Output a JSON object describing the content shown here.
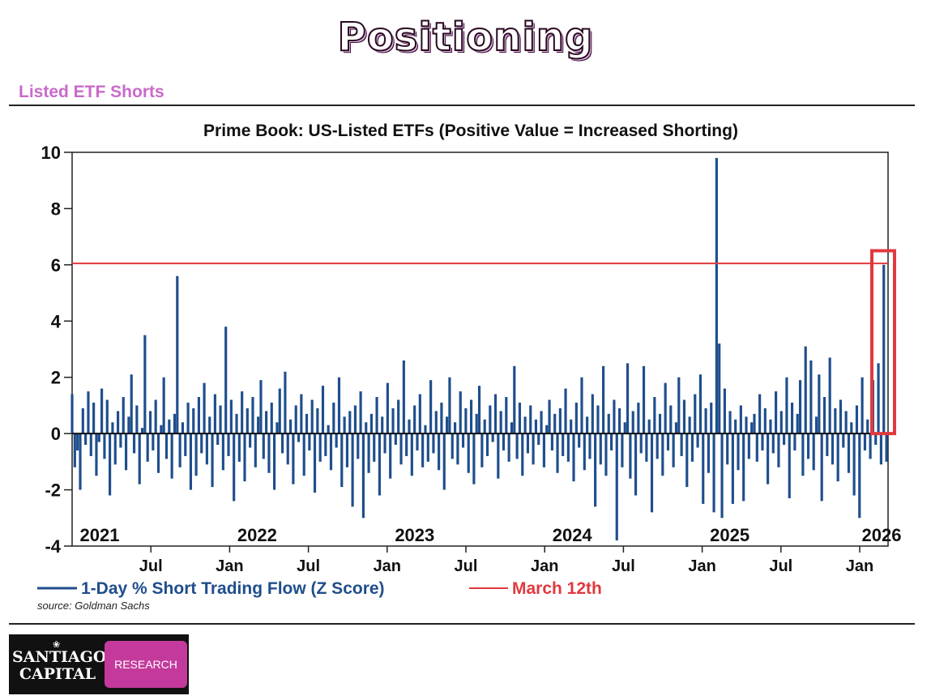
{
  "page": {
    "title": "Positioning",
    "section_title": "Listed ETF Shorts"
  },
  "logo": {
    "name_line1": "SANTIAGO",
    "name_line2": "CAPITAL",
    "badge": "RESEARCH",
    "emblem": "shell-icon"
  },
  "colors": {
    "series": "#1f4e8c",
    "reference": "#e0393e",
    "highlight_box": "#e0393e",
    "section_title": "#c96ac9",
    "logo_badge": "#c43a9c"
  },
  "chart_data": {
    "type": "bar",
    "title": "Prime Book: US-Listed ETFs (Positive Value = Increased Shorting)",
    "xlabel": "",
    "ylabel": "",
    "ylim": [
      -4,
      10
    ],
    "yticks": [
      -4,
      -2,
      0,
      2,
      4,
      6,
      8,
      10
    ],
    "xlim": [
      2021.0,
      2026.18
    ],
    "year_labels": [
      {
        "x": 2021.0,
        "label": "2021"
      },
      {
        "x": 2022.0,
        "label": "2022"
      },
      {
        "x": 2023.0,
        "label": "2023"
      },
      {
        "x": 2024.0,
        "label": "2024"
      },
      {
        "x": 2025.0,
        "label": "2025"
      },
      {
        "x": 2026.0,
        "label": "2026"
      }
    ],
    "month_labels": [
      {
        "x": 2021.5,
        "label": "Jul"
      },
      {
        "x": 2022.0,
        "label": "Jan"
      },
      {
        "x": 2022.5,
        "label": "Jul"
      },
      {
        "x": 2023.0,
        "label": "Jan"
      },
      {
        "x": 2023.5,
        "label": "Jul"
      },
      {
        "x": 2024.0,
        "label": "Jan"
      },
      {
        "x": 2024.5,
        "label": "Jul"
      },
      {
        "x": 2025.0,
        "label": "Jan"
      },
      {
        "x": 2025.5,
        "label": "Jul"
      },
      {
        "x": 2026.0,
        "label": "Jan"
      }
    ],
    "reference_line": {
      "y": 6.05,
      "label": "March 12th"
    },
    "highlight_range": {
      "x": [
        2026.115,
        2026.175
      ],
      "y": [
        0,
        6.5
      ]
    },
    "series": [
      {
        "name": "1-Day % Short Trading Flow (Z Score)",
        "x_start": 2021.0,
        "x_end": 2026.17,
        "values": [
          1.4,
          -1.2,
          -0.6,
          -2.0,
          0.9,
          -0.4,
          1.5,
          -0.8,
          1.1,
          -1.5,
          -0.3,
          1.6,
          -0.9,
          1.2,
          -2.2,
          0.4,
          -1.1,
          0.8,
          -0.5,
          1.3,
          -1.3,
          0.6,
          2.1,
          -0.7,
          1.0,
          -1.8,
          0.2,
          3.5,
          -1.0,
          0.8,
          -0.6,
          1.2,
          -1.4,
          0.3,
          2.0,
          -0.9,
          0.5,
          -1.6,
          0.7,
          5.6,
          -1.2,
          0.4,
          -0.8,
          1.1,
          -2.0,
          0.9,
          -1.5,
          1.3,
          -0.7,
          1.8,
          -1.1,
          0.6,
          -1.9,
          1.4,
          -0.4,
          1.0,
          -1.3,
          3.8,
          -0.8,
          1.2,
          -2.4,
          0.7,
          -1.0,
          1.5,
          -1.7,
          0.9,
          -0.5,
          1.3,
          -1.2,
          0.6,
          1.9,
          -0.9,
          0.8,
          -1.4,
          1.1,
          -2.0,
          0.4,
          1.6,
          -0.7,
          2.2,
          -1.1,
          0.5,
          -1.8,
          1.0,
          -0.3,
          1.4,
          -1.5,
          0.7,
          -0.6,
          1.2,
          -2.1,
          0.9,
          -1.0,
          1.7,
          -0.8,
          0.3,
          -1.3,
          1.1,
          -0.5,
          2.0,
          -1.9,
          0.6,
          -1.2,
          0.8,
          -2.6,
          1.0,
          -0.9,
          1.5,
          -3.0,
          0.4,
          -1.4,
          0.7,
          -1.0,
          1.3,
          -2.2,
          0.6,
          -0.7,
          1.8,
          -1.6,
          0.9,
          -0.4,
          1.2,
          -1.1,
          2.6,
          -0.8,
          0.5,
          -1.5,
          1.0,
          -0.6,
          1.4,
          -1.2,
          0.3,
          -1.0,
          1.9,
          -0.7,
          0.8,
          -1.3,
          1.1,
          -2.0,
          0.6,
          2.0,
          -0.9,
          0.4,
          -1.1,
          1.5,
          -0.5,
          0.9,
          -1.4,
          1.2,
          -1.8,
          0.7,
          1.7,
          -1.2,
          0.5,
          -0.8,
          1.0,
          -0.3,
          1.4,
          -1.6,
          0.8,
          -0.6,
          1.3,
          -1.0,
          0.4,
          2.4,
          -0.9,
          1.1,
          -1.5,
          0.6,
          -0.7,
          1.0,
          -1.1,
          0.5,
          -0.4,
          0.8,
          -1.2,
          0.3,
          1.2,
          -0.6,
          0.7,
          -1.4,
          0.9,
          -0.8,
          1.6,
          -1.0,
          0.5,
          -1.7,
          1.1,
          -0.5,
          2.0,
          -1.3,
          0.6,
          -0.9,
          1.4,
          -2.6,
          1.0,
          -1.1,
          2.4,
          -1.5,
          0.7,
          -0.6,
          1.2,
          -3.8,
          0.9,
          -1.2,
          0.4,
          2.5,
          -1.6,
          0.8,
          -2.2,
          1.1,
          -0.7,
          2.4,
          -1.0,
          0.5,
          -2.8,
          1.3,
          -0.9,
          0.7,
          -1.5,
          1.8,
          -0.6,
          1.0,
          -1.2,
          0.4,
          2.0,
          -0.8,
          1.2,
          -1.9,
          0.6,
          -1.0,
          1.4,
          -0.5,
          2.1,
          -2.5,
          0.9,
          -1.4,
          1.1,
          -2.8,
          9.8,
          3.2,
          -3.0,
          1.6,
          -1.1,
          0.8,
          -2.5,
          0.5,
          -1.3,
          1.0,
          -2.4,
          0.6,
          -0.9,
          0.4,
          0.7,
          -1.0,
          1.4,
          -0.6,
          0.9,
          -1.8,
          0.5,
          -0.7,
          1.5,
          -1.2,
          0.8,
          -0.4,
          2.0,
          -2.3,
          1.1,
          -0.6,
          0.7,
          1.9,
          -1.5,
          3.1,
          -0.9,
          2.6,
          -1.3,
          0.6,
          2.1,
          -2.4,
          1.3,
          -0.8,
          2.7,
          -1.1,
          0.9,
          -1.7,
          1.2,
          -0.5,
          0.8,
          -1.4,
          0.4,
          -2.2,
          1.0,
          -3.0,
          2.0,
          -0.6,
          0.5,
          -0.9,
          1.9,
          -0.4,
          2.5,
          -1.1,
          6.0,
          -1.0
        ]
      }
    ]
  },
  "chart_text": {
    "source": "source: Goldman Sachs"
  }
}
